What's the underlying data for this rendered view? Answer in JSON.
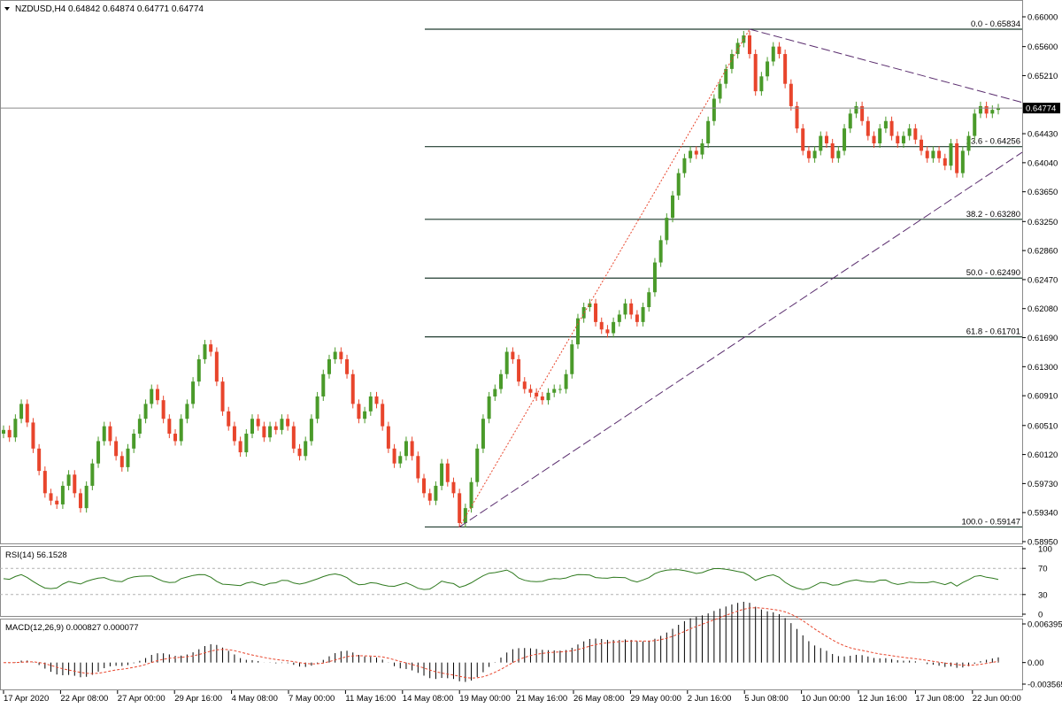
{
  "header": {
    "symbol": "NZDUSD,H4",
    "open": "0.64842",
    "high": "0.64874",
    "low": "0.64771",
    "close": "0.64774"
  },
  "colors": {
    "bull": "#4a9a2a",
    "bear": "#e8452c",
    "fib": "#1f3b2f",
    "trend": "#5a2d6e",
    "fib_path": "#e8452c",
    "rsi": "#2f7a1f",
    "macd_hist": "#000000",
    "macd_signal": "#e8452c"
  },
  "chart_data": [
    {
      "type": "candlestick",
      "symbol": "NZDUSD",
      "timeframe": "H4",
      "ylim": [
        0.5895,
        0.66
      ],
      "y_ticks": [
        "0.66000",
        "0.65600",
        "0.65210",
        "0.64430",
        "0.64040",
        "0.63650",
        "0.63250",
        "0.62860",
        "0.62470",
        "0.62080",
        "0.61690",
        "0.61300",
        "0.60910",
        "0.60510",
        "0.60120",
        "0.59730",
        "0.59340",
        "0.58950"
      ],
      "x_ticks": [
        "17 Apr 2020",
        "22 Apr 08:00",
        "27 Apr 00:00",
        "29 Apr 16:00",
        "4 May 08:00",
        "7 May 00:00",
        "11 May 16:00",
        "14 May 08:00",
        "19 May 00:00",
        "21 May 16:00",
        "26 May 08:00",
        "29 May 00:00",
        "2 Jun 16:00",
        "5 Jun 08:00",
        "10 Jun 00:00",
        "12 Jun 16:00",
        "17 Jun 08:00",
        "22 Jun 00:00"
      ],
      "price_line": {
        "value": 0.64774,
        "label": "0.64774"
      },
      "close_path": [
        0.6045,
        0.6035,
        0.606,
        0.608,
        0.6055,
        0.602,
        0.599,
        0.596,
        0.595,
        0.5945,
        0.597,
        0.5985,
        0.596,
        0.594,
        0.597,
        0.6,
        0.603,
        0.605,
        0.603,
        0.601,
        0.5995,
        0.602,
        0.604,
        0.606,
        0.608,
        0.61,
        0.6085,
        0.606,
        0.604,
        0.603,
        0.606,
        0.608,
        0.611,
        0.614,
        0.616,
        0.615,
        0.611,
        0.607,
        0.605,
        0.603,
        0.6015,
        0.604,
        0.606,
        0.605,
        0.6035,
        0.605,
        0.6045,
        0.606,
        0.605,
        0.602,
        0.601,
        0.603,
        0.606,
        0.609,
        0.612,
        0.614,
        0.615,
        0.614,
        0.612,
        0.608,
        0.606,
        0.607,
        0.609,
        0.608,
        0.605,
        0.602,
        0.6,
        0.601,
        0.603,
        0.601,
        0.598,
        0.596,
        0.595,
        0.597,
        0.6,
        0.5975,
        0.596,
        0.592,
        0.594,
        0.5975,
        0.602,
        0.606,
        0.609,
        0.61,
        0.612,
        0.615,
        0.614,
        0.611,
        0.61,
        0.6095,
        0.609,
        0.6085,
        0.6095,
        0.61,
        0.61,
        0.612,
        0.616,
        0.6195,
        0.621,
        0.6215,
        0.619,
        0.618,
        0.6175,
        0.619,
        0.62,
        0.6215,
        0.62,
        0.619,
        0.621,
        0.623,
        0.627,
        0.63,
        0.633,
        0.636,
        0.639,
        0.641,
        0.642,
        0.6415,
        0.643,
        0.646,
        0.649,
        0.651,
        0.653,
        0.655,
        0.6565,
        0.6575,
        0.655,
        0.65,
        0.652,
        0.654,
        0.656,
        0.655,
        0.651,
        0.648,
        0.645,
        0.642,
        0.641,
        0.642,
        0.644,
        0.643,
        0.641,
        0.642,
        0.645,
        0.647,
        0.648,
        0.646,
        0.644,
        0.643,
        0.645,
        0.646,
        0.644,
        0.643,
        0.644,
        0.645,
        0.6435,
        0.642,
        0.641,
        0.642,
        0.641,
        0.64,
        0.643,
        0.639,
        0.642,
        0.644,
        0.647,
        0.648,
        0.647,
        0.6475,
        0.6477
      ],
      "fibonacci": [
        {
          "label": "0.0 - 0.65834",
          "value": 0.65834
        },
        {
          "label": "23.6 - 0.64256",
          "value": 0.64256
        },
        {
          "label": "38.2 - 0.63280",
          "value": 0.6328
        },
        {
          "label": "50.0 - 0.62490",
          "value": 0.6249
        },
        {
          "label": "61.8 - 0.61701",
          "value": 0.61701
        },
        {
          "label": "100.0 - 0.59147",
          "value": 0.59147
        }
      ]
    },
    {
      "type": "line",
      "name": "RSI(14)",
      "value": "56.1528",
      "ylim": [
        0,
        100
      ],
      "y_ticks": [
        "100",
        "70",
        "30",
        "0"
      ],
      "levels": [
        70,
        30
      ]
    },
    {
      "type": "bar",
      "name": "MACD(12,26,9)",
      "macd": "0.000827",
      "signal": "0.000077",
      "ylim": [
        -0.003565,
        0.006395
      ],
      "y_ticks": [
        "0.006395",
        "0.00",
        "-0.003565"
      ]
    }
  ]
}
